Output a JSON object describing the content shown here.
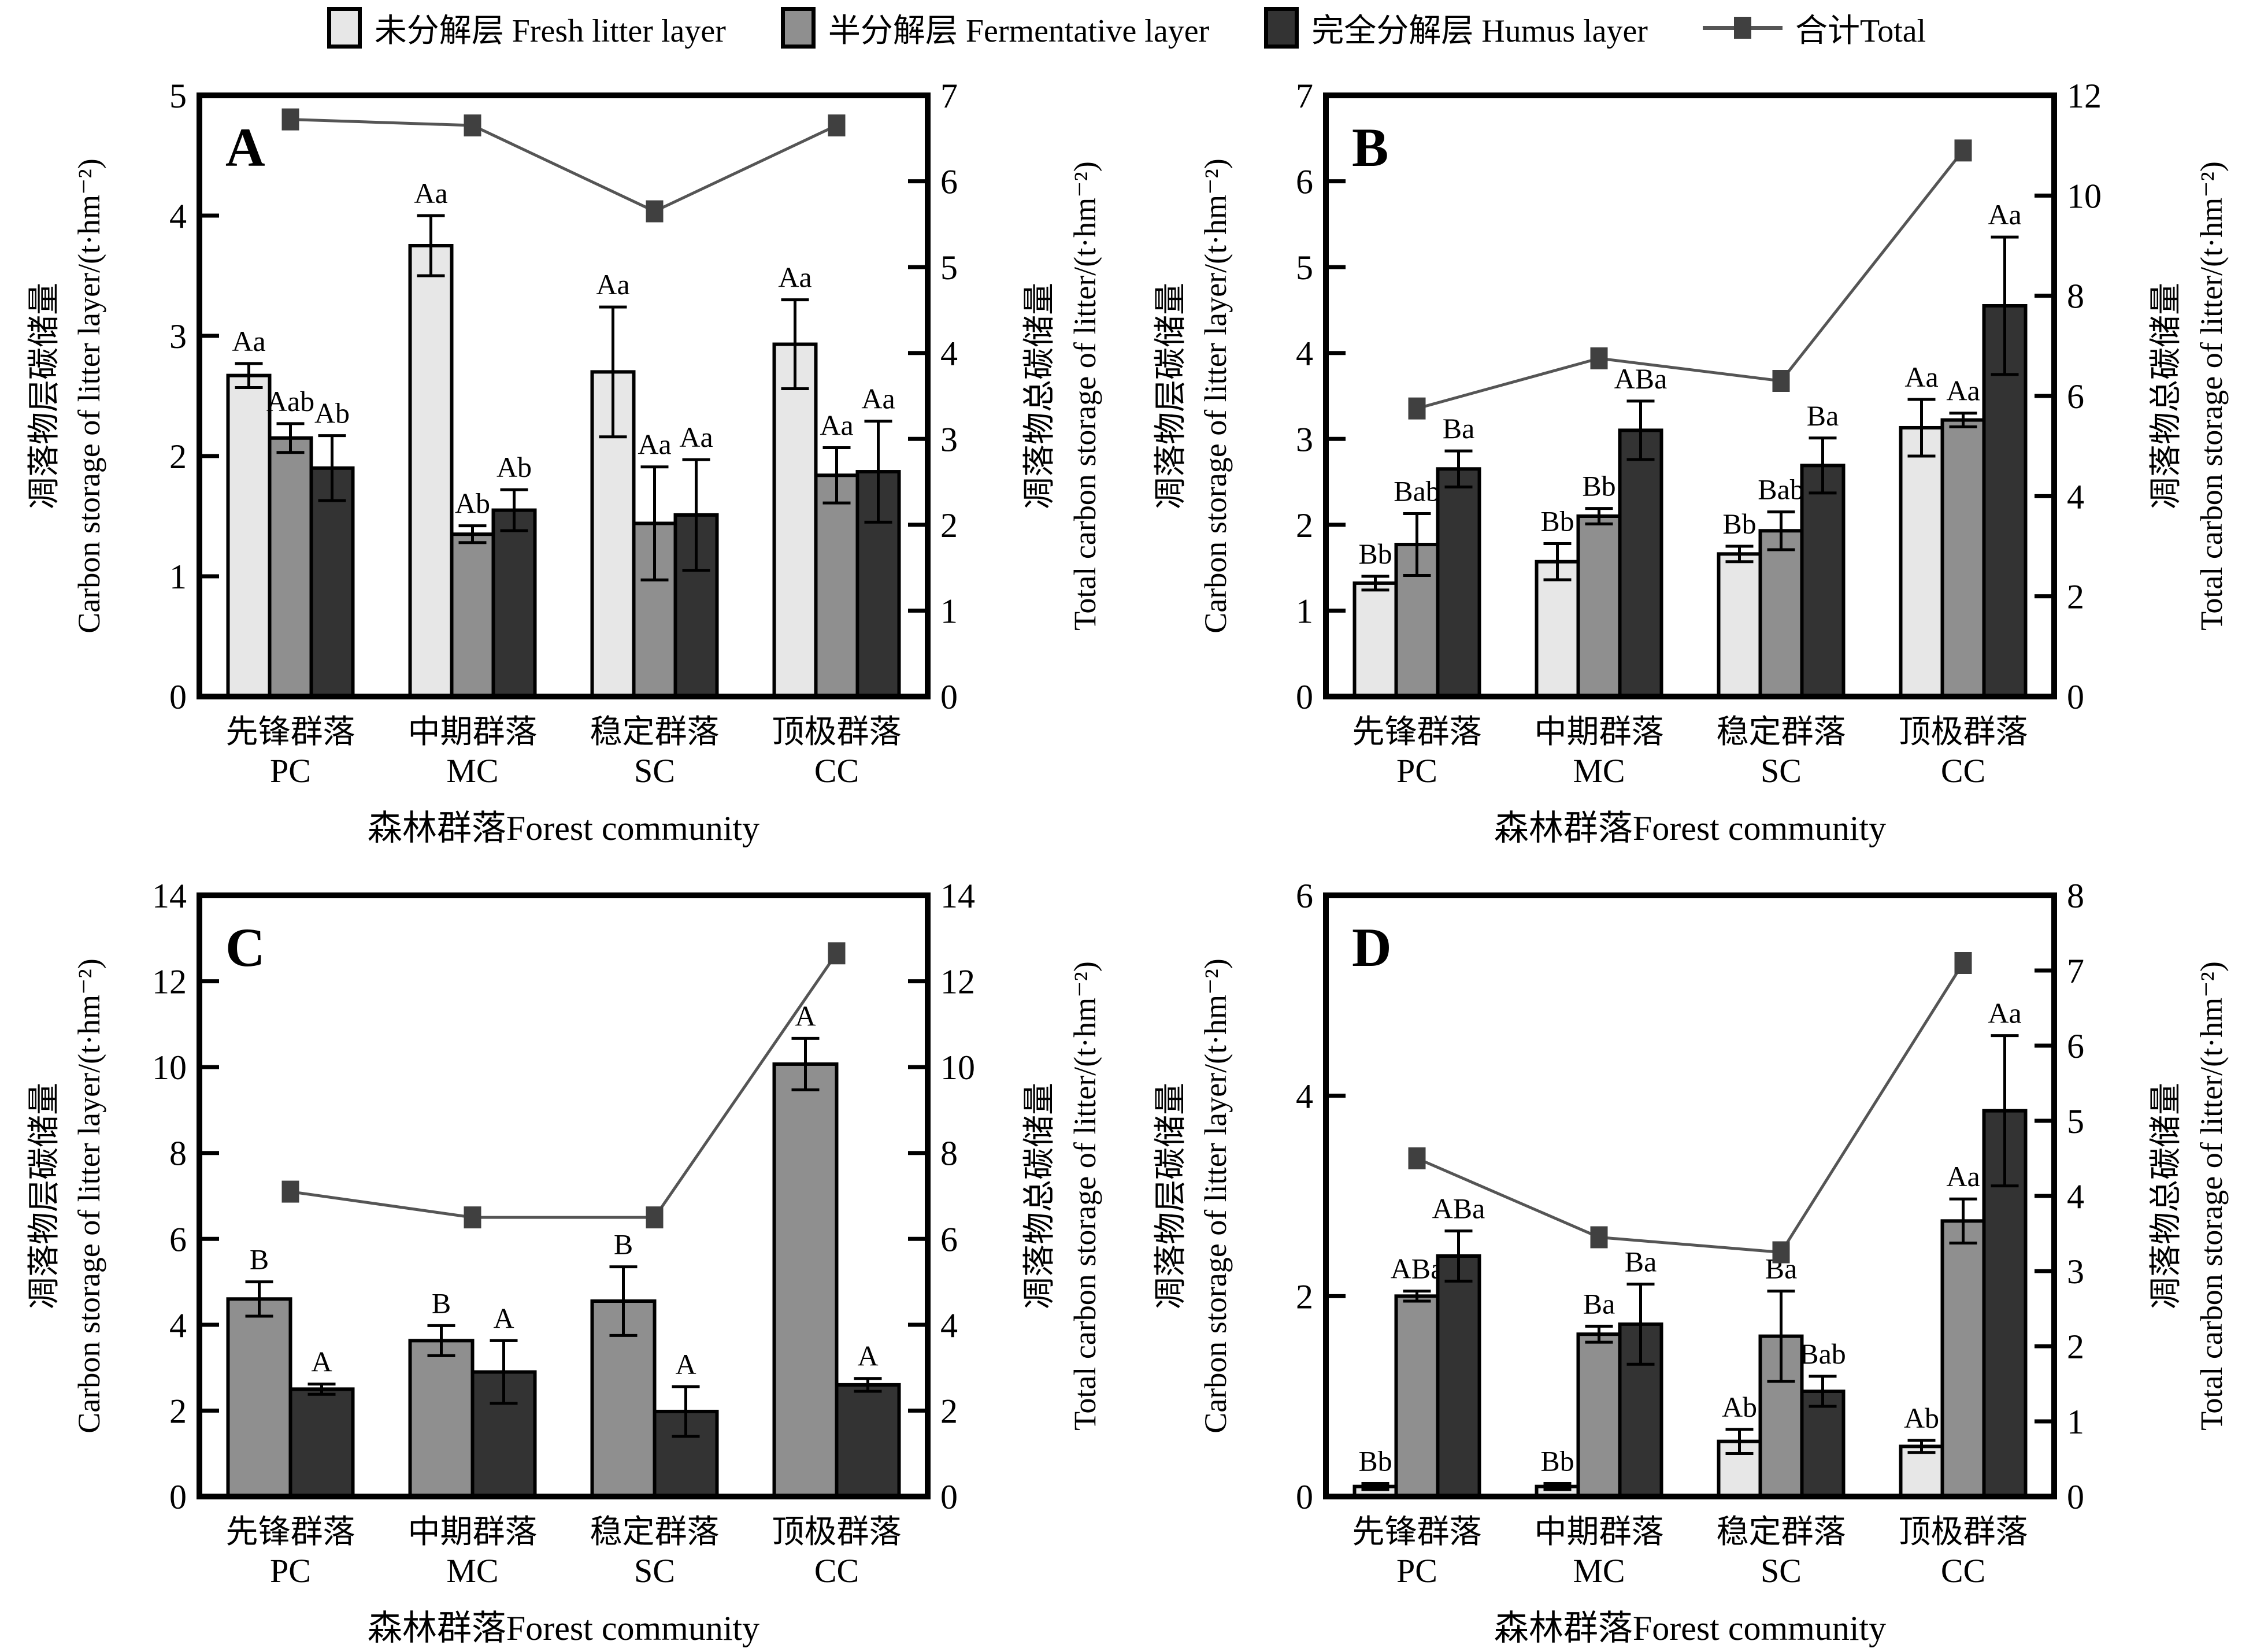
{
  "figure": {
    "background": "#ffffff"
  },
  "legend": {
    "items": [
      {
        "key": "fresh",
        "label": "未分解层 Fresh litter layer"
      },
      {
        "key": "fermentative",
        "label": "半分解层 Fermentative layer"
      },
      {
        "key": "humus",
        "label": "完全分解层 Humus layer"
      }
    ],
    "total": {
      "key": "total",
      "label": "合计Total"
    }
  },
  "colors": {
    "fresh": "#e7e7e7",
    "fermentative": "#8f8f8f",
    "humus": "#333333",
    "bar_border": "#000000",
    "total_line": "#555555",
    "total_marker": "#404040",
    "axis": "#000000"
  },
  "axes": {
    "left_title_zh": "凋落物层碳储量",
    "left_title_en": "Carbon storage of litter layer/(t·hm⁻²)",
    "right_title_zh": "凋落物总碳储量",
    "right_title_en": "Total carbon storage of litter/(t·hm⁻²)",
    "x_title": "森林群落Forest community"
  },
  "categories": [
    {
      "zh": "先锋群落",
      "code": "PC"
    },
    {
      "zh": "中期群落",
      "code": "MC"
    },
    {
      "zh": "稳定群落",
      "code": "SC"
    },
    {
      "zh": "顶极群落",
      "code": "CC"
    }
  ],
  "chart_data": [
    {
      "type": "bar+line",
      "panel": "A",
      "ylim_left": [
        0,
        5
      ],
      "yticks_left": [
        0,
        1,
        2,
        3,
        4,
        5
      ],
      "ylim_right": [
        0,
        7
      ],
      "yticks_right": [
        0,
        1,
        2,
        3,
        4,
        5,
        6,
        7
      ],
      "series": [
        {
          "name": "fresh",
          "values": [
            2.67,
            3.75,
            2.7,
            2.93
          ],
          "errors": [
            0.1,
            0.25,
            0.54,
            0.37
          ],
          "sig": [
            "Aa",
            "Aa",
            "Aa",
            "Aa"
          ]
        },
        {
          "name": "fermentative",
          "values": [
            2.15,
            1.35,
            1.44,
            1.84
          ],
          "errors": [
            0.12,
            0.07,
            0.47,
            0.23
          ],
          "sig": [
            "Aab",
            "Ab",
            "Aa",
            "Aa"
          ]
        },
        {
          "name": "humus",
          "values": [
            1.9,
            1.55,
            1.51,
            1.87
          ],
          "errors": [
            0.27,
            0.17,
            0.46,
            0.42
          ],
          "sig": [
            "Ab",
            "Ab",
            "Aa",
            "Aa"
          ]
        }
      ],
      "total_values_right": [
        6.72,
        6.65,
        5.65,
        6.65
      ]
    },
    {
      "type": "bar+line",
      "panel": "B",
      "ylim_left": [
        0,
        7
      ],
      "yticks_left": [
        0,
        1,
        2,
        3,
        4,
        5,
        6,
        7
      ],
      "ylim_right": [
        0,
        12
      ],
      "yticks_right": [
        0,
        2,
        4,
        6,
        8,
        10,
        12
      ],
      "series": [
        {
          "name": "fresh",
          "values": [
            1.32,
            1.57,
            1.66,
            3.13
          ],
          "errors": [
            0.08,
            0.21,
            0.09,
            0.33
          ],
          "sig": [
            "Bb",
            "Bb",
            "Bb",
            "Aa"
          ]
        },
        {
          "name": "fermentative",
          "values": [
            1.77,
            2.1,
            1.93,
            3.22
          ],
          "errors": [
            0.36,
            0.09,
            0.22,
            0.08
          ],
          "sig": [
            "Bab",
            "Bb",
            "Bab",
            "Aa"
          ]
        },
        {
          "name": "humus",
          "values": [
            2.65,
            3.1,
            2.69,
            4.55
          ],
          "errors": [
            0.21,
            0.34,
            0.32,
            0.8
          ],
          "sig": [
            "Ba",
            "ABa",
            "Ba",
            "Aa"
          ]
        }
      ],
      "total_values_right": [
        5.75,
        6.75,
        6.3,
        10.9
      ]
    },
    {
      "type": "bar+line",
      "panel": "C",
      "ylim_left": [
        0,
        14
      ],
      "yticks_left": [
        0,
        2,
        4,
        6,
        8,
        10,
        12,
        14
      ],
      "ylim_right": [
        0,
        14
      ],
      "yticks_right": [
        0,
        2,
        4,
        6,
        8,
        10,
        12,
        14
      ],
      "series": [
        {
          "name": "fermentative",
          "values": [
            4.6,
            3.63,
            4.55,
            10.07
          ],
          "errors": [
            0.4,
            0.35,
            0.8,
            0.6
          ],
          "sig": [
            "B",
            "B",
            "B",
            "A"
          ]
        },
        {
          "name": "humus",
          "values": [
            2.5,
            2.9,
            1.98,
            2.6
          ],
          "errors": [
            0.12,
            0.73,
            0.58,
            0.15
          ],
          "sig": [
            "A",
            "A",
            "A",
            "A"
          ]
        }
      ],
      "total_values_right": [
        7.1,
        6.5,
        6.5,
        12.65
      ]
    },
    {
      "type": "bar+line",
      "panel": "D",
      "ylim_left": [
        0,
        6
      ],
      "yticks_left": [
        0,
        2,
        4,
        6
      ],
      "ylim_right": [
        0,
        8
      ],
      "yticks_right": [
        0,
        1,
        2,
        3,
        4,
        5,
        6,
        7,
        8
      ],
      "series": [
        {
          "name": "fresh",
          "values": [
            0.1,
            0.1,
            0.55,
            0.5
          ],
          "errors": [
            0.03,
            0.03,
            0.12,
            0.06
          ],
          "sig": [
            "Bb",
            "Bb",
            "Ab",
            "Ab"
          ]
        },
        {
          "name": "fermentative",
          "values": [
            2.0,
            1.62,
            1.6,
            2.75
          ],
          "errors": [
            0.05,
            0.08,
            0.45,
            0.22
          ],
          "sig": [
            "ABa",
            "Ba",
            "Ba",
            "Aa"
          ]
        },
        {
          "name": "humus",
          "values": [
            2.4,
            1.72,
            1.05,
            3.85
          ],
          "errors": [
            0.25,
            0.4,
            0.15,
            0.75
          ],
          "sig": [
            "ABa",
            "Ba",
            "Bab",
            "Aa"
          ]
        }
      ],
      "total_values_right": [
        4.5,
        3.45,
        3.25,
        7.1
      ]
    }
  ]
}
